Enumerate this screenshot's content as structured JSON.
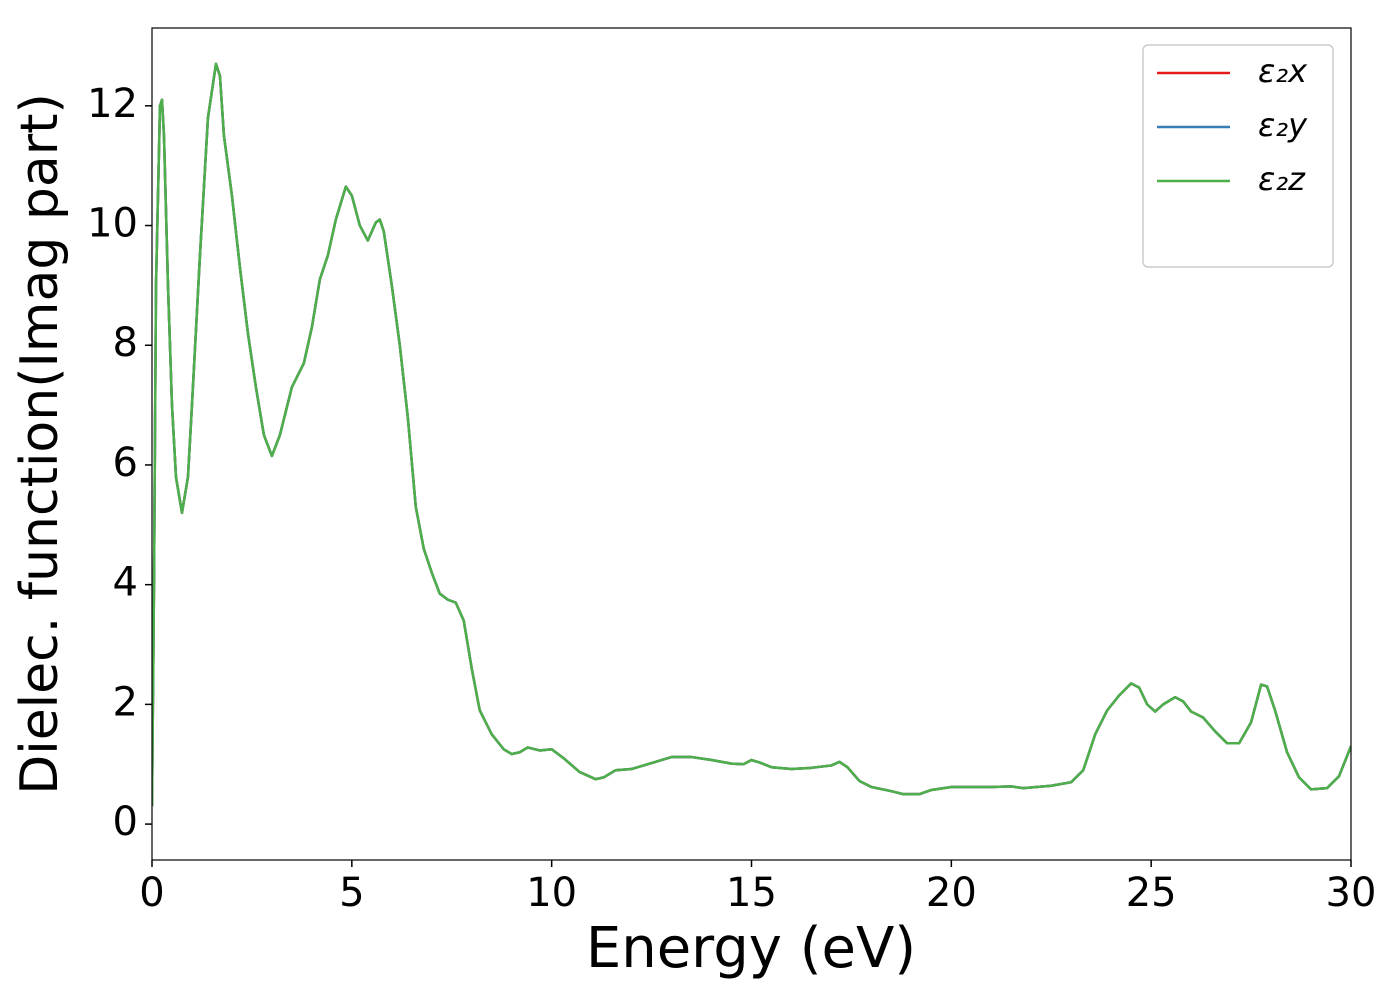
{
  "chart_data": {
    "type": "line",
    "xlabel": "Energy (eV)",
    "ylabel": "Dielec. function(Imag part)",
    "x": [
      0,
      0.05,
      0.1,
      0.2,
      0.25,
      0.3,
      0.4,
      0.5,
      0.6,
      0.75,
      0.9,
      1.0,
      1.2,
      1.4,
      1.6,
      1.7,
      1.8,
      2.0,
      2.2,
      2.4,
      2.6,
      2.8,
      3.0,
      3.2,
      3.5,
      3.8,
      4.0,
      4.2,
      4.4,
      4.6,
      4.85,
      5.0,
      5.2,
      5.4,
      5.6,
      5.7,
      5.8,
      6.0,
      6.2,
      6.4,
      6.6,
      6.8,
      7.0,
      7.2,
      7.4,
      7.6,
      7.8,
      8.0,
      8.2,
      8.5,
      8.8,
      9.0,
      9.2,
      9.4,
      9.7,
      10.0,
      10.3,
      10.7,
      11.1,
      11.3,
      11.6,
      12.0,
      12.5,
      13.0,
      13.5,
      14.0,
      14.5,
      14.8,
      15.0,
      15.2,
      15.5,
      16.0,
      16.5,
      17.0,
      17.2,
      17.4,
      17.7,
      18.0,
      18.5,
      18.8,
      19.2,
      19.5,
      20.0,
      20.5,
      21.0,
      21.5,
      21.8,
      22.5,
      23.0,
      23.3,
      23.6,
      23.9,
      24.2,
      24.5,
      24.7,
      24.9,
      25.1,
      25.3,
      25.6,
      25.8,
      26.0,
      26.3,
      26.6,
      26.9,
      27.2,
      27.5,
      27.75,
      27.9,
      28.1,
      28.4,
      28.7,
      29.0,
      29.4,
      29.7,
      30.0
    ],
    "series": [
      {
        "name": "ε₂x",
        "color": "#e41a1c",
        "values": [
          0.3,
          4,
          9,
          12.0,
          12.1,
          11.5,
          9,
          7,
          5.8,
          5.2,
          5.8,
          7,
          9.5,
          11.8,
          12.7,
          12.5,
          11.5,
          10.5,
          9.3,
          8.2,
          7.3,
          6.5,
          6.15,
          6.5,
          7.3,
          7.7,
          8.3,
          9.1,
          9.5,
          10.1,
          10.65,
          10.5,
          10.0,
          9.75,
          10.05,
          10.1,
          9.9,
          9.0,
          8.0,
          6.8,
          5.3,
          4.6,
          4.2,
          3.85,
          3.75,
          3.7,
          3.4,
          2.6,
          1.9,
          1.5,
          1.25,
          1.17,
          1.2,
          1.28,
          1.23,
          1.25,
          1.1,
          0.87,
          0.75,
          0.78,
          0.9,
          0.92,
          1.02,
          1.12,
          1.12,
          1.07,
          1.01,
          1.0,
          1.07,
          1.03,
          0.95,
          0.92,
          0.94,
          0.98,
          1.04,
          0.95,
          0.72,
          0.62,
          0.55,
          0.5,
          0.5,
          0.57,
          0.62,
          0.62,
          0.62,
          0.63,
          0.6,
          0.64,
          0.7,
          0.9,
          1.5,
          1.9,
          2.15,
          2.35,
          2.28,
          2.0,
          1.88,
          2.0,
          2.12,
          2.05,
          1.88,
          1.78,
          1.55,
          1.35,
          1.35,
          1.7,
          2.33,
          2.3,
          1.9,
          1.2,
          0.78,
          0.58,
          0.6,
          0.8,
          1.3
        ]
      },
      {
        "name": "ε₂y",
        "color": "#377eb8",
        "values": [
          0.3,
          4,
          9,
          12.0,
          12.1,
          11.5,
          9,
          7,
          5.8,
          5.2,
          5.8,
          7,
          9.5,
          11.8,
          12.7,
          12.5,
          11.5,
          10.5,
          9.3,
          8.2,
          7.3,
          6.5,
          6.15,
          6.5,
          7.3,
          7.7,
          8.3,
          9.1,
          9.5,
          10.1,
          10.65,
          10.5,
          10.0,
          9.75,
          10.05,
          10.1,
          9.9,
          9.0,
          8.0,
          6.8,
          5.3,
          4.6,
          4.2,
          3.85,
          3.75,
          3.7,
          3.4,
          2.6,
          1.9,
          1.5,
          1.25,
          1.17,
          1.2,
          1.28,
          1.23,
          1.25,
          1.1,
          0.87,
          0.75,
          0.78,
          0.9,
          0.92,
          1.02,
          1.12,
          1.12,
          1.07,
          1.01,
          1.0,
          1.07,
          1.03,
          0.95,
          0.92,
          0.94,
          0.98,
          1.04,
          0.95,
          0.72,
          0.62,
          0.55,
          0.5,
          0.5,
          0.57,
          0.62,
          0.62,
          0.62,
          0.63,
          0.6,
          0.64,
          0.7,
          0.9,
          1.5,
          1.9,
          2.15,
          2.35,
          2.28,
          2.0,
          1.88,
          2.0,
          2.12,
          2.05,
          1.88,
          1.78,
          1.55,
          1.35,
          1.35,
          1.7,
          2.33,
          2.3,
          1.9,
          1.2,
          0.78,
          0.58,
          0.6,
          0.8,
          1.3
        ]
      },
      {
        "name": "ε₂z",
        "color": "#4daf4a",
        "values": [
          0.3,
          4,
          9,
          12.0,
          12.1,
          11.5,
          9,
          7,
          5.8,
          5.2,
          5.8,
          7,
          9.5,
          11.8,
          12.7,
          12.5,
          11.5,
          10.5,
          9.3,
          8.2,
          7.3,
          6.5,
          6.15,
          6.5,
          7.3,
          7.7,
          8.3,
          9.1,
          9.5,
          10.1,
          10.65,
          10.5,
          10.0,
          9.75,
          10.05,
          10.1,
          9.9,
          9.0,
          8.0,
          6.8,
          5.3,
          4.6,
          4.2,
          3.85,
          3.75,
          3.7,
          3.4,
          2.6,
          1.9,
          1.5,
          1.25,
          1.17,
          1.2,
          1.28,
          1.23,
          1.25,
          1.1,
          0.87,
          0.75,
          0.78,
          0.9,
          0.92,
          1.02,
          1.12,
          1.12,
          1.07,
          1.01,
          1.0,
          1.07,
          1.03,
          0.95,
          0.92,
          0.94,
          0.98,
          1.04,
          0.95,
          0.72,
          0.62,
          0.55,
          0.5,
          0.5,
          0.57,
          0.62,
          0.62,
          0.62,
          0.63,
          0.6,
          0.64,
          0.7,
          0.9,
          1.5,
          1.9,
          2.15,
          2.35,
          2.28,
          2.0,
          1.88,
          2.0,
          2.12,
          2.05,
          1.88,
          1.78,
          1.55,
          1.35,
          1.35,
          1.7,
          2.33,
          2.3,
          1.9,
          1.2,
          0.78,
          0.58,
          0.6,
          0.8,
          1.3
        ]
      }
    ],
    "xlim": [
      0,
      30
    ],
    "xticks": [
      0,
      5,
      10,
      15,
      20,
      25,
      30
    ],
    "ylim": [
      -0.6,
      13.3
    ],
    "yticks": [
      0,
      2,
      4,
      6,
      8,
      10,
      12
    ],
    "grid": false,
    "legend": "upper right"
  }
}
